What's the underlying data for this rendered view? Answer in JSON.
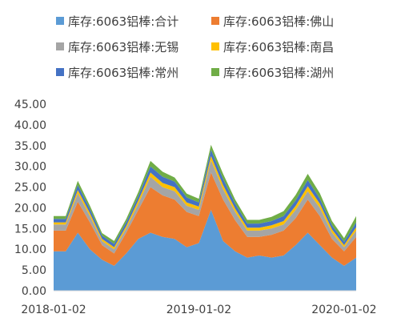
{
  "chart_data": {
    "type": "area",
    "stacked": true,
    "title": "",
    "xlabel": "",
    "ylabel": "",
    "ylim": [
      0,
      45
    ],
    "yticks": [
      "45.00",
      "40.00",
      "35.00",
      "30.00",
      "25.00",
      "20.00",
      "15.00",
      "10.00",
      "5.00",
      "0.00"
    ],
    "xticks": [
      "2018-01-02",
      "2019-01-02",
      "2020-01-02"
    ],
    "grid": false,
    "legend_position": "top",
    "x": [
      "2018-01-02",
      "2018-02-01",
      "2018-03-05",
      "2018-04-02",
      "2018-05-02",
      "2018-06-01",
      "2018-07-02",
      "2018-08-01",
      "2018-09-03",
      "2018-10-08",
      "2018-11-01",
      "2018-12-03",
      "2019-01-02",
      "2019-02-01",
      "2019-03-01",
      "2019-04-01",
      "2019-05-06",
      "2019-06-03",
      "2019-07-01",
      "2019-08-01",
      "2019-09-02",
      "2019-10-08",
      "2019-11-01",
      "2019-12-02",
      "2020-01-02",
      "2020-02-03"
    ],
    "series": [
      {
        "name": "库存:6063铝棒:合计",
        "color": "#5b9bd5",
        "values": [
          9.5,
          9.5,
          14.0,
          10.0,
          7.5,
          6.0,
          9.0,
          12.5,
          14.0,
          13.0,
          12.5,
          10.5,
          11.5,
          19.5,
          12.0,
          9.5,
          8.0,
          8.5,
          8.0,
          8.5,
          11.0,
          14.0,
          11.0,
          8.0,
          6.0,
          8.0
        ]
      },
      {
        "name": "库存:6063铝棒:佛山",
        "color": "#ed7d31",
        "values": [
          5.0,
          5.0,
          7.5,
          6.5,
          3.5,
          3.0,
          5.0,
          7.0,
          11.0,
          10.0,
          9.5,
          8.5,
          6.5,
          9.0,
          10.0,
          7.5,
          5.0,
          4.5,
          5.5,
          6.0,
          6.5,
          8.0,
          7.0,
          4.5,
          3.5,
          5.0
        ]
      },
      {
        "name": "库存:6063铝棒:无锡",
        "color": "#a5a5a5",
        "values": [
          1.5,
          1.5,
          2.0,
          1.5,
          1.0,
          1.0,
          1.0,
          1.5,
          2.5,
          2.0,
          2.0,
          1.5,
          1.5,
          3.0,
          2.5,
          2.0,
          1.5,
          1.5,
          1.5,
          1.5,
          2.0,
          2.0,
          2.0,
          1.5,
          1.0,
          1.5
        ]
      },
      {
        "name": "库存:6063铝棒:南昌",
        "color": "#ffc000",
        "values": [
          0.5,
          0.5,
          0.8,
          0.7,
          0.5,
          0.5,
          0.6,
          0.8,
          1.0,
          1.0,
          1.0,
          0.8,
          0.8,
          1.0,
          1.0,
          0.8,
          0.7,
          0.7,
          0.8,
          0.8,
          1.0,
          1.2,
          1.0,
          0.8,
          0.5,
          0.8
        ]
      },
      {
        "name": "库存:6063铝棒:常州",
        "color": "#4472c4",
        "values": [
          0.8,
          0.8,
          1.2,
          1.0,
          0.8,
          0.8,
          0.9,
          1.0,
          1.5,
          1.5,
          1.3,
          1.2,
          1.0,
          1.5,
          1.5,
          1.2,
          1.0,
          1.0,
          1.0,
          1.2,
          1.3,
          1.5,
          1.2,
          1.0,
          0.8,
          1.2
        ]
      },
      {
        "name": "库存:6063铝棒:湖州",
        "color": "#70ad47",
        "values": [
          0.7,
          0.7,
          1.0,
          0.8,
          0.6,
          0.7,
          0.8,
          1.0,
          1.3,
          1.2,
          1.0,
          0.9,
          0.9,
          1.2,
          1.2,
          1.0,
          0.9,
          0.9,
          1.0,
          1.2,
          1.3,
          1.5,
          1.3,
          1.0,
          0.9,
          1.5
        ]
      }
    ]
  }
}
